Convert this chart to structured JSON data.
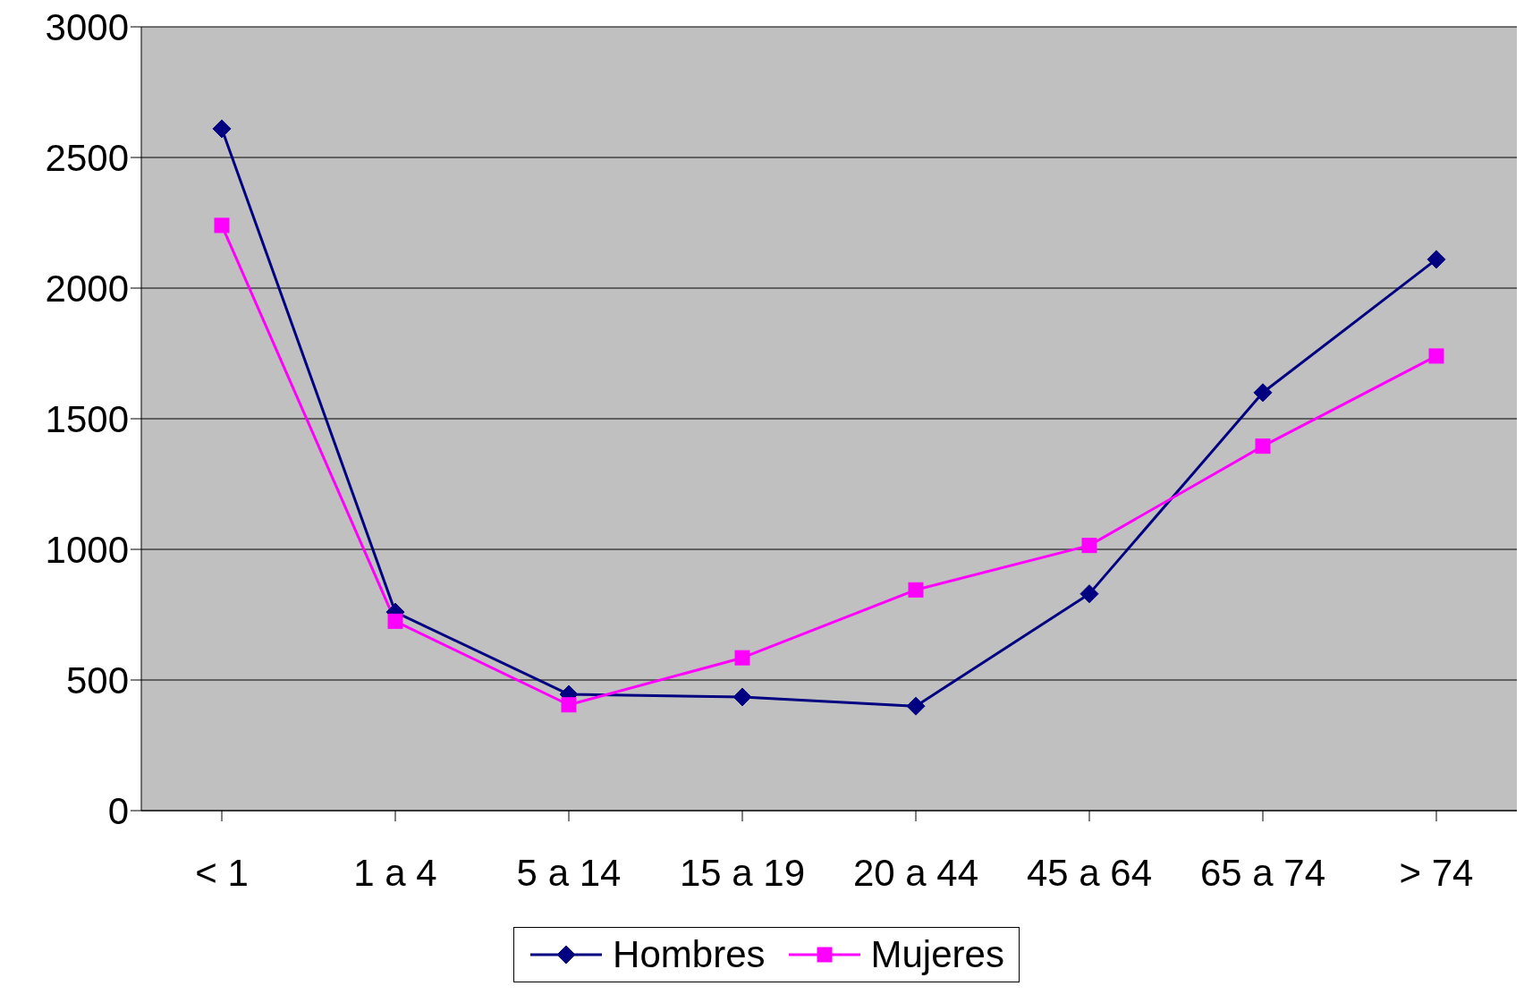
{
  "chart_data": {
    "type": "line",
    "categories": [
      "< 1",
      "1 a 4",
      "5 a 14",
      "15 a 19",
      "20 a 44",
      "45 a 64",
      "65 a 74",
      "> 74"
    ],
    "series": [
      {
        "name": "Hombres",
        "color": "#000080",
        "marker": "diamond",
        "values": [
          2610,
          760,
          445,
          435,
          400,
          830,
          1600,
          2110
        ]
      },
      {
        "name": "Mujeres",
        "color": "#ff00ff",
        "marker": "square",
        "values": [
          2240,
          725,
          405,
          585,
          845,
          1015,
          1395,
          1740
        ]
      }
    ],
    "ylim": [
      0,
      3000
    ],
    "yticks": [
      0,
      500,
      1000,
      1500,
      2000,
      2500,
      3000
    ],
    "grid": "y",
    "legend": "bottom",
    "line_style": "solid"
  }
}
